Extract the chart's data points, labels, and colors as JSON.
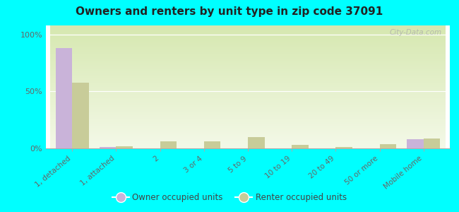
{
  "title": "Owners and renters by unit type in zip code 37091",
  "categories": [
    "1, detached",
    "1, attached",
    "2",
    "3 or 4",
    "5 to 9",
    "10 to 19",
    "20 to 49",
    "50 or more",
    "Mobile home"
  ],
  "owner_values": [
    88,
    1,
    0,
    0,
    0,
    0,
    0,
    0,
    8
  ],
  "renter_values": [
    58,
    2,
    6,
    6,
    10,
    3,
    1,
    4,
    9
  ],
  "owner_color": "#c9b3d9",
  "renter_color": "#c8cc99",
  "background_color": "#00ffff",
  "grad_top": "#d6e8b0",
  "grad_bottom": "#f4f9e8",
  "ylabel_ticks": [
    "0%",
    "50%",
    "100%"
  ],
  "ytick_values": [
    0,
    50,
    100
  ],
  "ylim": [
    0,
    108
  ],
  "bar_width": 0.38,
  "legend_owner": "Owner occupied units",
  "legend_renter": "Renter occupied units",
  "watermark": "City-Data.com"
}
